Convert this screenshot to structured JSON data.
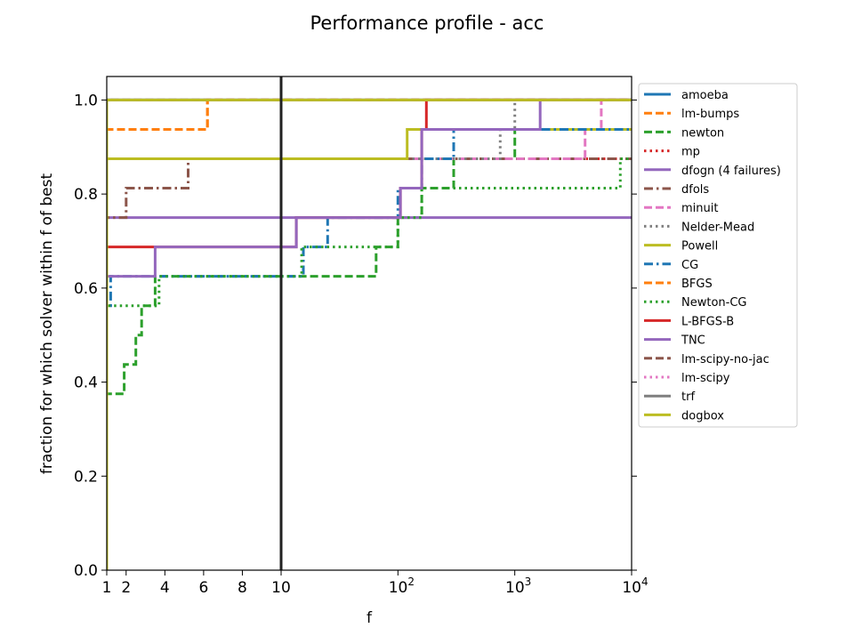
{
  "chart_data": {
    "type": "line",
    "title": "Performance profile - acc",
    "xlabel": "f",
    "ylabel": "fraction for which solver within f of best",
    "xlim": [
      1,
      10000
    ],
    "ylim": [
      0,
      1.05
    ],
    "x_scale": "linear from 1 to 10, log from 10 to 10^4",
    "reference_line_x": 10,
    "x_ticks": [
      {
        "value": 1,
        "label": "1"
      },
      {
        "value": 2,
        "label": "2"
      },
      {
        "value": 4,
        "label": "4"
      },
      {
        "value": 6,
        "label": "6"
      },
      {
        "value": 8,
        "label": "8"
      },
      {
        "value": 10,
        "label": "10"
      },
      {
        "value": 100,
        "label": "10",
        "exp": "2"
      },
      {
        "value": 1000,
        "label": "10",
        "exp": "3"
      },
      {
        "value": 10000,
        "label": "10",
        "exp": "4"
      }
    ],
    "y_ticks": [
      {
        "value": 0,
        "label": "0.0"
      },
      {
        "value": 0.2,
        "label": "0.2"
      },
      {
        "value": 0.4,
        "label": "0.4"
      },
      {
        "value": 0.6,
        "label": "0.6"
      },
      {
        "value": 0.8,
        "label": "0.8"
      },
      {
        "value": 1.0,
        "label": "1.0"
      }
    ],
    "legend_position": "outside right",
    "series": [
      {
        "name": "amoeba",
        "color": "#1f77b4",
        "style": "solid",
        "points": [
          [
            1,
            0
          ],
          [
            1,
            1
          ],
          [
            10000,
            1
          ]
        ]
      },
      {
        "name": "lm-bumps",
        "color": "#ff7f0e",
        "style": "dashed",
        "points": [
          [
            1,
            0
          ],
          [
            1,
            0.9375
          ],
          [
            6.2,
            0.9375
          ],
          [
            6.2,
            1.0
          ],
          [
            10000,
            1.0
          ]
        ]
      },
      {
        "name": "newton",
        "color": "#2ca02c",
        "style": "dashed",
        "points": [
          [
            1,
            0
          ],
          [
            1,
            0.375
          ],
          [
            1.9,
            0.375
          ],
          [
            1.9,
            0.4375
          ],
          [
            2.5,
            0.4375
          ],
          [
            2.5,
            0.5
          ],
          [
            2.8,
            0.5
          ],
          [
            2.8,
            0.5625
          ],
          [
            3.5,
            0.5625
          ],
          [
            3.5,
            0.625
          ],
          [
            65,
            0.625
          ],
          [
            65,
            0.6875
          ],
          [
            100,
            0.6875
          ],
          [
            100,
            0.75
          ],
          [
            160,
            0.75
          ],
          [
            160,
            0.8125
          ],
          [
            300,
            0.8125
          ],
          [
            300,
            0.875
          ],
          [
            1000,
            0.875
          ],
          [
            1000,
            0.9375
          ],
          [
            10000,
            0.9375
          ]
        ]
      },
      {
        "name": "mp",
        "color": "#d62728",
        "style": "dotted",
        "points": [
          [
            1,
            0
          ],
          [
            1,
            0.875
          ],
          [
            10000,
            0.875
          ]
        ]
      },
      {
        "name": "dfogn (4 failures)",
        "color": "#9467bd",
        "style": "solid",
        "points": [
          [
            1,
            0
          ],
          [
            1,
            0.75
          ],
          [
            10000,
            0.75
          ]
        ]
      },
      {
        "name": "dfols",
        "color": "#8c564b",
        "style": "dashdot",
        "points": [
          [
            1,
            0
          ],
          [
            1,
            0.75
          ],
          [
            2,
            0.75
          ],
          [
            2,
            0.8125
          ],
          [
            5.2,
            0.8125
          ],
          [
            5.2,
            0.875
          ],
          [
            10000,
            0.875
          ]
        ]
      },
      {
        "name": "minuit",
        "color": "#e377c2",
        "style": "dashed",
        "points": [
          [
            1,
            0
          ],
          [
            1,
            0.875
          ],
          [
            4000,
            0.875
          ],
          [
            4000,
            0.9375
          ],
          [
            5500,
            0.9375
          ],
          [
            5500,
            1.0
          ],
          [
            10000,
            1.0
          ]
        ]
      },
      {
        "name": "Nelder-Mead",
        "color": "#7f7f7f",
        "style": "dotted",
        "points": [
          [
            1,
            0
          ],
          [
            1,
            0.875
          ],
          [
            750,
            0.875
          ],
          [
            750,
            0.9375
          ],
          [
            1000,
            0.9375
          ],
          [
            1000,
            1.0
          ],
          [
            10000,
            1.0
          ]
        ]
      },
      {
        "name": "Powell",
        "color": "#bcbd22",
        "style": "solid",
        "points": [
          [
            1,
            0
          ],
          [
            1,
            0.875
          ],
          [
            120,
            0.875
          ],
          [
            120,
            0.9375
          ],
          [
            10000,
            0.9375
          ]
        ]
      },
      {
        "name": "CG",
        "color": "#1f77b4",
        "style": "dashdot",
        "points": [
          [
            1,
            0
          ],
          [
            1,
            0.5625
          ],
          [
            1.2,
            0.5625
          ],
          [
            1.2,
            0.625
          ],
          [
            15.5,
            0.625
          ],
          [
            15.5,
            0.6875
          ],
          [
            25,
            0.6875
          ],
          [
            25,
            0.75
          ],
          [
            100,
            0.75
          ],
          [
            100,
            0.8125
          ],
          [
            160,
            0.8125
          ],
          [
            160,
            0.875
          ],
          [
            300,
            0.875
          ],
          [
            300,
            0.9375
          ],
          [
            10000,
            0.9375
          ]
        ]
      },
      {
        "name": "BFGS",
        "color": "#ff7f0e",
        "style": "dashed",
        "points": [
          [
            1,
            0
          ],
          [
            1,
            0.9375
          ],
          [
            6.2,
            0.9375
          ],
          [
            6.2,
            1.0
          ],
          [
            10000,
            1.0
          ]
        ]
      },
      {
        "name": "Newton-CG",
        "color": "#2ca02c",
        "style": "dotted",
        "points": [
          [
            1,
            0
          ],
          [
            1,
            0.5625
          ],
          [
            3.7,
            0.5625
          ],
          [
            3.7,
            0.625
          ],
          [
            15,
            0.625
          ],
          [
            15,
            0.6875
          ],
          [
            100,
            0.6875
          ],
          [
            100,
            0.75
          ],
          [
            160,
            0.75
          ],
          [
            160,
            0.8125
          ],
          [
            8000,
            0.8125
          ],
          [
            8000,
            0.875
          ],
          [
            10000,
            0.875
          ]
        ]
      },
      {
        "name": "L-BFGS-B",
        "color": "#d62728",
        "style": "solid",
        "points": [
          [
            1,
            0
          ],
          [
            1,
            0.6875
          ],
          [
            13.5,
            0.6875
          ],
          [
            13.5,
            0.75
          ],
          [
            105,
            0.75
          ],
          [
            105,
            0.8125
          ],
          [
            160,
            0.8125
          ],
          [
            160,
            0.9375
          ],
          [
            175,
            0.9375
          ],
          [
            175,
            1.0
          ],
          [
            10000,
            1.0
          ]
        ]
      },
      {
        "name": "TNC",
        "color": "#9467bd",
        "style": "solid",
        "points": [
          [
            1,
            0
          ],
          [
            1,
            0.625
          ],
          [
            3.5,
            0.625
          ],
          [
            3.5,
            0.6875
          ],
          [
            13.5,
            0.6875
          ],
          [
            13.5,
            0.75
          ],
          [
            105,
            0.75
          ],
          [
            105,
            0.8125
          ],
          [
            160,
            0.8125
          ],
          [
            160,
            0.9375
          ],
          [
            1650,
            0.9375
          ],
          [
            1650,
            1.0
          ],
          [
            10000,
            1.0
          ]
        ]
      },
      {
        "name": "lm-scipy-no-jac",
        "color": "#8c564b",
        "style": "dashed",
        "points": [
          [
            1,
            0
          ],
          [
            1,
            1.0
          ],
          [
            10000,
            1.0
          ]
        ]
      },
      {
        "name": "lm-scipy",
        "color": "#e377c2",
        "style": "dotted",
        "points": [
          [
            1,
            0
          ],
          [
            1,
            1.0
          ],
          [
            10000,
            1.0
          ]
        ]
      },
      {
        "name": "trf",
        "color": "#7f7f7f",
        "style": "solid",
        "points": [
          [
            1,
            0
          ],
          [
            1,
            1.0
          ],
          [
            10000,
            1.0
          ]
        ]
      },
      {
        "name": "dogbox",
        "color": "#bcbd22",
        "style": "solid",
        "points": [
          [
            1,
            0
          ],
          [
            1,
            1.0
          ],
          [
            10000,
            1.0
          ]
        ]
      }
    ]
  }
}
